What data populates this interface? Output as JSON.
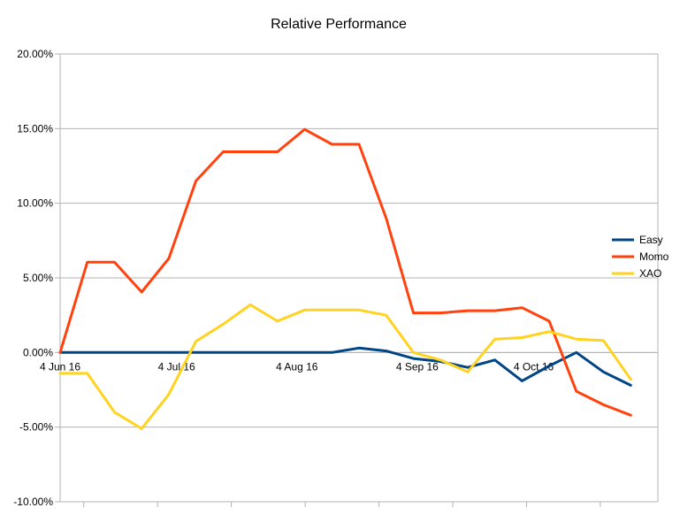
{
  "chart_data": {
    "type": "line",
    "title": "Relative Performance",
    "xlabel": "",
    "ylabel": "",
    "x_tick_labels": [
      "4 Jun 16",
      "4 Jul 16",
      "4 Aug 16",
      "4 Sep 16",
      "4 Oct 16"
    ],
    "y_tick_labels": [
      "20.00%",
      "15.00%",
      "10.00%",
      "5.00%",
      "0.00%",
      "-5.00%",
      "-10.00%"
    ],
    "ylim": [
      -10,
      20
    ],
    "y_unit": "percent",
    "grid": "horizontal",
    "legend_position": "right",
    "x": [
      "2016-06-04",
      "2016-06-11",
      "2016-06-18",
      "2016-06-25",
      "2016-07-02",
      "2016-07-09",
      "2016-07-16",
      "2016-07-23",
      "2016-07-30",
      "2016-08-06",
      "2016-08-13",
      "2016-08-20",
      "2016-08-27",
      "2016-09-03",
      "2016-09-10",
      "2016-09-17",
      "2016-09-24",
      "2016-10-01",
      "2016-10-08",
      "2016-10-15",
      "2016-10-22",
      "2016-10-29",
      "2016-11-05"
    ],
    "series": [
      {
        "name": "Easy",
        "color": "#004586",
        "values": [
          0,
          0,
          0,
          0,
          0,
          0,
          0,
          0,
          0,
          0,
          0,
          0.3,
          0.1,
          -0.4,
          -0.6,
          -1.0,
          -0.5,
          -1.9,
          -0.9,
          0.0,
          -1.3,
          -2.2,
          null
        ]
      },
      {
        "name": "Momo",
        "color": "#ff420e",
        "values": [
          0,
          6.05,
          6.05,
          4.05,
          6.3,
          11.5,
          13.45,
          13.45,
          13.45,
          14.95,
          13.95,
          13.95,
          9.0,
          2.65,
          2.65,
          2.8,
          2.8,
          3.0,
          2.1,
          -2.6,
          -3.5,
          -4.2,
          null
        ]
      },
      {
        "name": "XAO",
        "color": "#ffd320",
        "values": [
          -1.4,
          -1.4,
          -4.0,
          -5.1,
          -2.8,
          0.75,
          1.9,
          3.2,
          2.1,
          2.85,
          2.85,
          2.85,
          2.5,
          0.0,
          -0.5,
          -1.3,
          0.9,
          1.0,
          1.4,
          0.9,
          0.8,
          -1.8,
          null
        ]
      }
    ]
  }
}
